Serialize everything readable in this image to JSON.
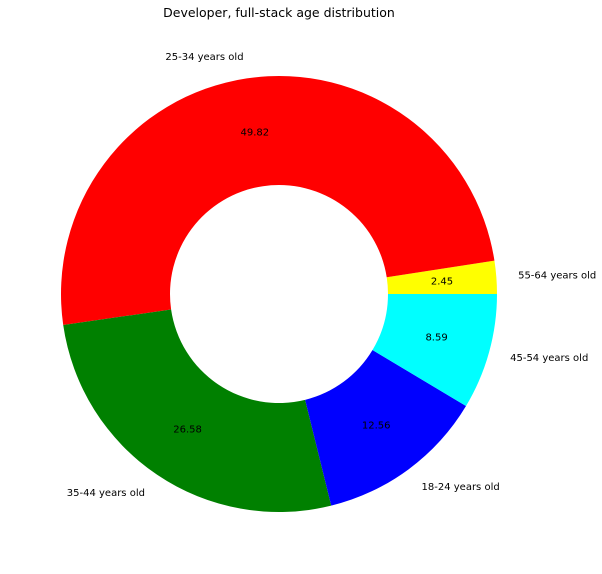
{
  "chart_data": {
    "type": "pie",
    "style": "donut",
    "title": "Developer, full-stack age distribution",
    "slices": [
      {
        "label": "55-64 years old",
        "value": 2.45,
        "pct_text": "2.45",
        "color": "#ffff00"
      },
      {
        "label": "25-34 years old",
        "value": 49.82,
        "pct_text": "49.82",
        "color": "#ff0000"
      },
      {
        "label": "35-44 years old",
        "value": 26.58,
        "pct_text": "26.58",
        "color": "#008000"
      },
      {
        "label": "18-24 years old",
        "value": 12.56,
        "pct_text": "12.56",
        "color": "#0000ff"
      },
      {
        "label": "45-54 years old",
        "value": 8.59,
        "pct_text": "8.59",
        "color": "#00ffff"
      }
    ],
    "legend": "none"
  }
}
